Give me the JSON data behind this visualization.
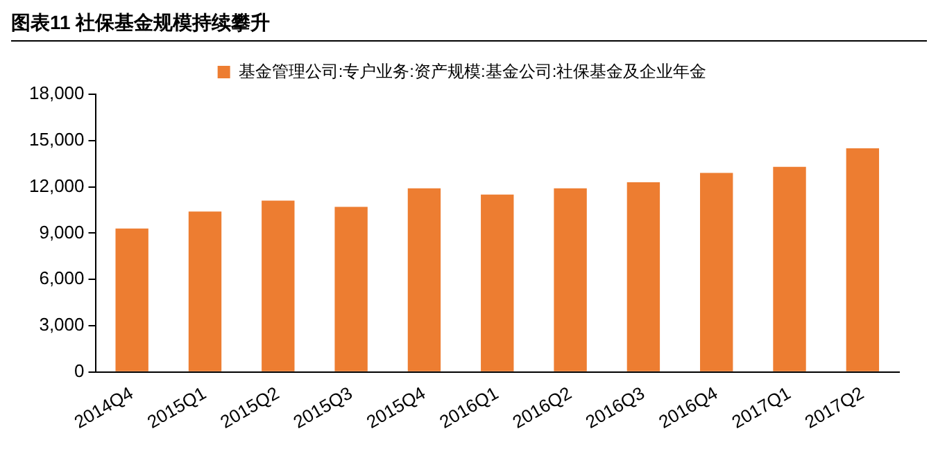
{
  "chart_data": {
    "type": "bar",
    "title": "图表11  社保基金规模持续攀升",
    "categories": [
      "2014Q4",
      "2015Q1",
      "2015Q2",
      "2015Q3",
      "2015Q4",
      "2016Q1",
      "2016Q2",
      "2016Q3",
      "2016Q4",
      "2017Q1",
      "2017Q2"
    ],
    "series": [
      {
        "name": "基金管理公司:专户业务:资产规模:基金公司:社保基金及企业年金",
        "color": "#ed7d31",
        "values": [
          9300,
          10400,
          11100,
          10700,
          11900,
          11500,
          11900,
          12300,
          12900,
          13300,
          14500
        ]
      }
    ],
    "ylim": [
      0,
      18000
    ],
    "yticks": [
      {
        "value": 0,
        "label": "0"
      },
      {
        "value": 3000,
        "label": "3,000"
      },
      {
        "value": 6000,
        "label": "6,000"
      },
      {
        "value": 9000,
        "label": "9,000"
      },
      {
        "value": 12000,
        "label": "12,000"
      },
      {
        "value": 15000,
        "label": "15,000"
      },
      {
        "value": 18000,
        "label": "18,000"
      }
    ],
    "grid": false,
    "legend": "top"
  }
}
